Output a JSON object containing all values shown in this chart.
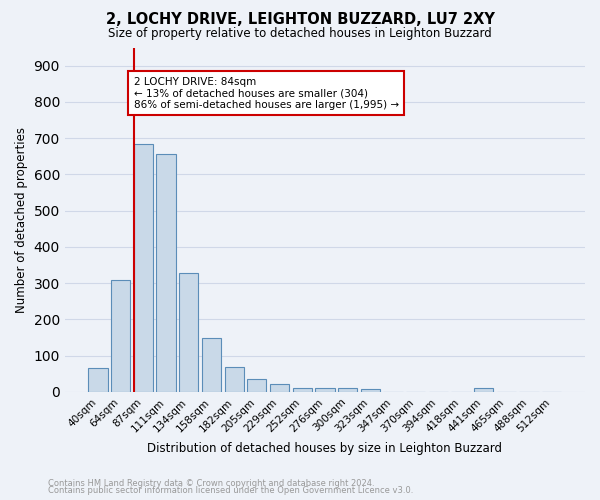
{
  "title": "2, LOCHY DRIVE, LEIGHTON BUZZARD, LU7 2XY",
  "subtitle": "Size of property relative to detached houses in Leighton Buzzard",
  "xlabel": "Distribution of detached houses by size in Leighton Buzzard",
  "ylabel": "Number of detached properties",
  "footnote1": "Contains HM Land Registry data © Crown copyright and database right 2024.",
  "footnote2": "Contains public sector information licensed under the Open Government Licence v3.0.",
  "bar_labels": [
    "40sqm",
    "64sqm",
    "87sqm",
    "111sqm",
    "134sqm",
    "158sqm",
    "182sqm",
    "205sqm",
    "229sqm",
    "252sqm",
    "276sqm",
    "300sqm",
    "323sqm",
    "347sqm",
    "370sqm",
    "394sqm",
    "418sqm",
    "441sqm",
    "465sqm",
    "488sqm",
    "512sqm"
  ],
  "bar_values": [
    65,
    310,
    685,
    655,
    328,
    150,
    68,
    35,
    22,
    12,
    10,
    10,
    8,
    0,
    0,
    0,
    0,
    12,
    0,
    0,
    0
  ],
  "bar_color": "#c9d9e8",
  "bar_edge_color": "#5b8db8",
  "grid_color": "#d0d8e8",
  "background_color": "#eef2f8",
  "vline_color": "#cc0000",
  "vline_x": 1.57,
  "annotation_text": "2 LOCHY DRIVE: 84sqm\n← 13% of detached houses are smaller (304)\n86% of semi-detached houses are larger (1,995) →",
  "annotation_box_color": "#ffffff",
  "annotation_box_edge": "#cc0000",
  "ylim": [
    0,
    950
  ],
  "yticks": [
    0,
    100,
    200,
    300,
    400,
    500,
    600,
    700,
    800,
    900
  ]
}
